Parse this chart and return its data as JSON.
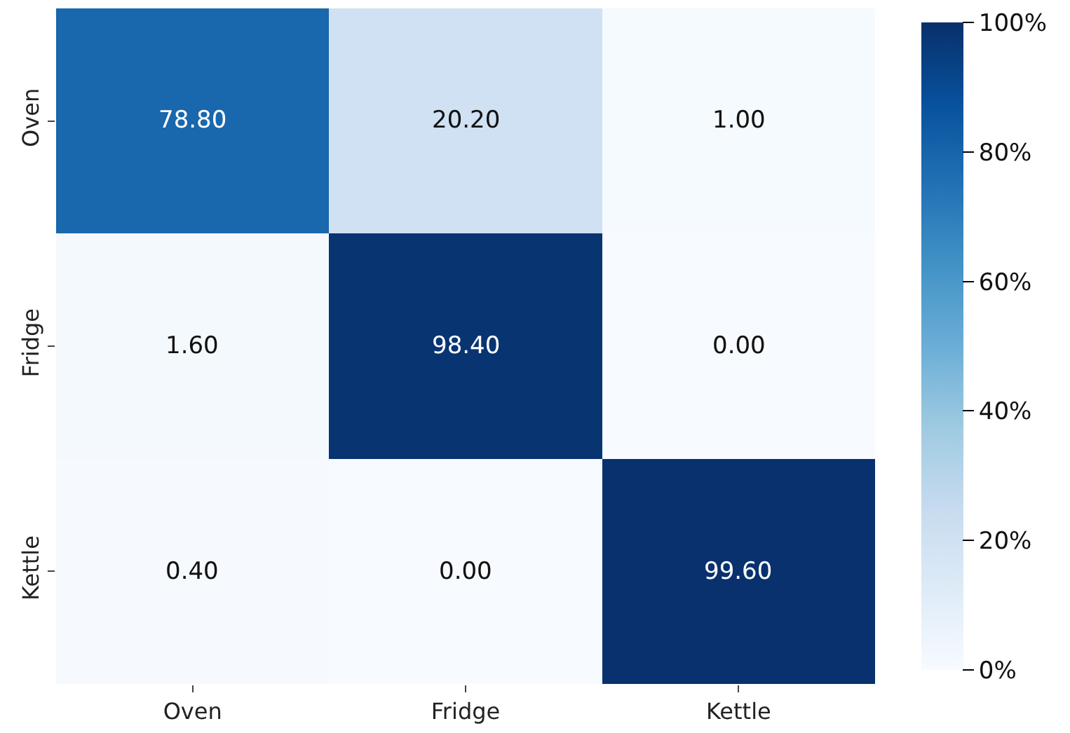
{
  "chart_data": {
    "type": "heatmap",
    "categories": [
      "Oven",
      "Fridge",
      "Kettle"
    ],
    "y_categories": [
      "Oven",
      "Fridge",
      "Kettle"
    ],
    "cells": [
      [
        78.8,
        20.2,
        1.0
      ],
      [
        1.6,
        98.4,
        0.0
      ],
      [
        0.4,
        0.0,
        99.6
      ]
    ],
    "cell_labels": [
      [
        "78.80",
        "20.20",
        "1.00"
      ],
      [
        "1.60",
        "98.40",
        "0.00"
      ],
      [
        "0.40",
        "0.00",
        "99.60"
      ]
    ],
    "clim": [
      0,
      100
    ],
    "cticks": [
      {
        "value": 0,
        "label": "0%"
      },
      {
        "value": 20,
        "label": "20%"
      },
      {
        "value": 40,
        "label": "40%"
      },
      {
        "value": 60,
        "label": "60%"
      },
      {
        "value": 80,
        "label": "80%"
      },
      {
        "value": 100,
        "label": "100%"
      }
    ]
  }
}
